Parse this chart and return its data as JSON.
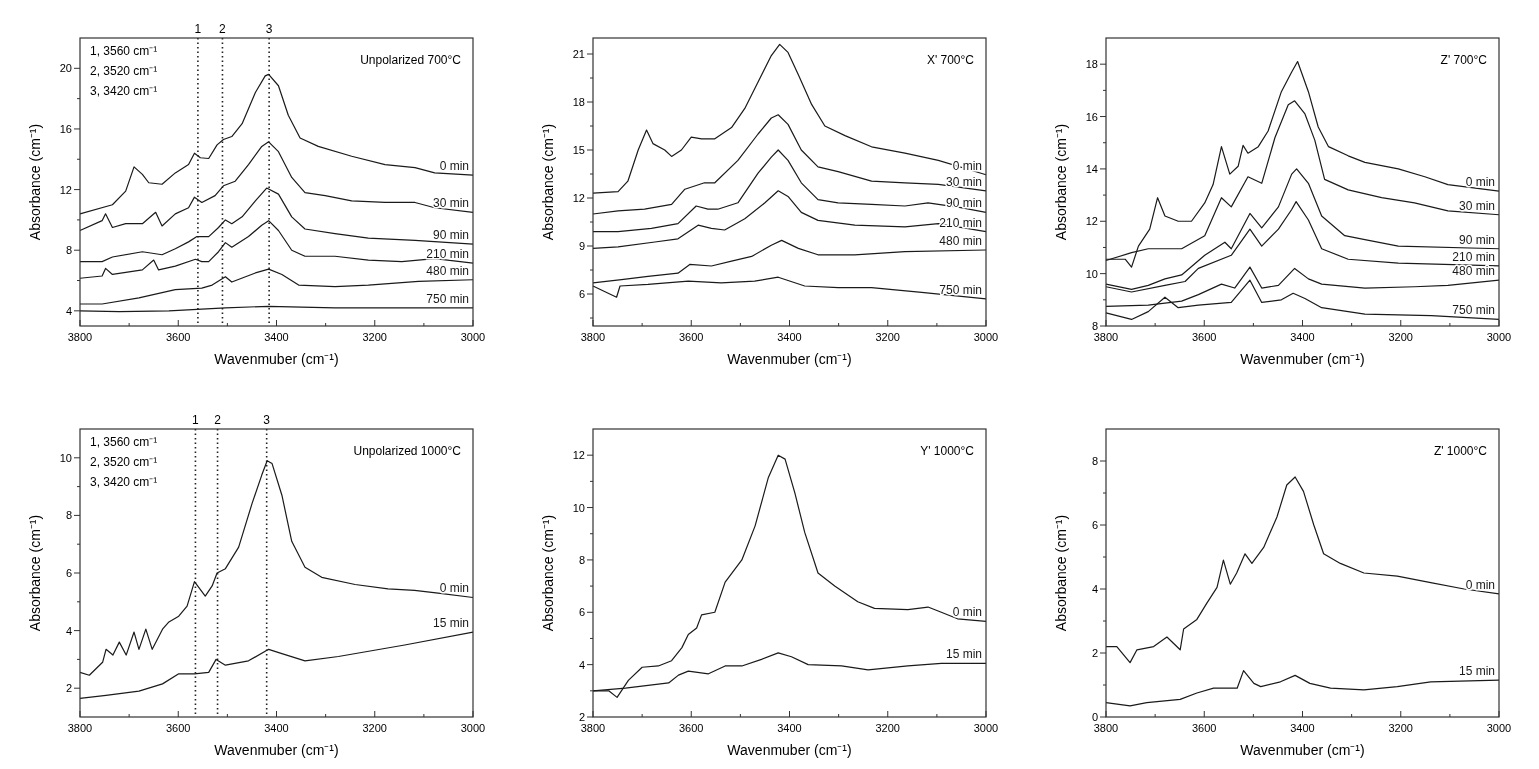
{
  "chart_data": [
    {
      "type": "line",
      "title": "Unpolarized 700°C",
      "annotations": [
        "1, 3560 cm⁻¹",
        "2, 3520 cm⁻¹",
        "3, 3420 cm⁻¹",
        "1",
        "2",
        "3"
      ],
      "xlabel": "Wavenmuber (cm⁻¹)",
      "ylabel": "Absorbance (cm⁻¹)",
      "line_style": "solid",
      "xlim": [
        3800,
        3000
      ],
      "xticks": [
        3800,
        {
          "value": 3700,
          "label": null
        },
        3600,
        {
          "value": 3500,
          "label": null
        },
        3400,
        {
          "value": 3300,
          "label": null
        },
        3200,
        {
          "value": 3100,
          "label": null
        },
        3000
      ],
      "ylim": [
        3,
        22
      ],
      "yticks": [
        4,
        {
          "value": 6,
          "label": null
        },
        8,
        {
          "value": 10,
          "label": null
        },
        12,
        {
          "value": 14,
          "label": null
        },
        16,
        {
          "value": 18,
          "label": null
        },
        20
      ],
      "ref_lines": [
        {
          "axis": "x",
          "value": 3560,
          "line_style": "dotted"
        },
        {
          "axis": "x",
          "value": 3510,
          "line_style": "dotted"
        },
        {
          "axis": "x",
          "value": 3415,
          "line_style": "dotted"
        }
      ],
      "series": [
        {
          "name": "0 min",
          "color": "#1a1a1a",
          "x": [
            3800,
            3734,
            3707,
            3690,
            3673,
            3660,
            3633,
            3606,
            3579,
            3567,
            3555,
            3538,
            3521,
            3508,
            3491,
            3470,
            3443,
            3423,
            3416,
            3396,
            3376,
            3352,
            3315,
            3247,
            3179,
            3118,
            3078,
            3000
          ],
          "values": [
            10.4,
            11.0,
            11.9,
            13.5,
            13.0,
            12.45,
            12.35,
            13.1,
            13.65,
            14.4,
            14.1,
            14.05,
            14.95,
            15.3,
            15.5,
            16.35,
            18.4,
            19.5,
            19.6,
            18.85,
            16.9,
            15.4,
            14.85,
            14.2,
            13.65,
            13.45,
            13.1,
            12.95
          ]
        },
        {
          "name": "30 min",
          "color": "#1a1a1a",
          "x": [
            3800,
            3755,
            3748,
            3734,
            3707,
            3673,
            3646,
            3633,
            3606,
            3579,
            3567,
            3552,
            3525,
            3508,
            3484,
            3457,
            3430,
            3416,
            3396,
            3369,
            3342,
            3301,
            3247,
            3179,
            3118,
            3078,
            3000
          ],
          "values": [
            9.3,
            9.95,
            10.4,
            9.5,
            9.75,
            9.75,
            10.5,
            9.6,
            10.4,
            10.8,
            11.5,
            11.15,
            11.6,
            12.25,
            12.55,
            13.65,
            14.85,
            15.15,
            14.5,
            12.8,
            11.8,
            11.6,
            11.25,
            11.15,
            11.15,
            10.8,
            10.5
          ]
        },
        {
          "name": "90 min",
          "color": "#1a1a1a",
          "x": [
            3800,
            3755,
            3734,
            3673,
            3633,
            3606,
            3579,
            3562,
            3538,
            3518,
            3504,
            3491,
            3470,
            3443,
            3420,
            3396,
            3369,
            3342,
            3281,
            3213,
            3118,
            3000
          ],
          "values": [
            7.25,
            7.25,
            7.55,
            7.9,
            7.7,
            8.1,
            8.55,
            8.9,
            8.9,
            9.5,
            10.0,
            9.75,
            10.2,
            11.25,
            12.1,
            11.7,
            10.2,
            9.4,
            9.1,
            8.8,
            8.65,
            8.4
          ]
        },
        {
          "name": "210 min",
          "color": "#1a1a1a",
          "x": [
            3800,
            3755,
            3748,
            3734,
            3673,
            3650,
            3640,
            3606,
            3565,
            3552,
            3538,
            3518,
            3504,
            3491,
            3457,
            3430,
            3416,
            3396,
            3369,
            3342,
            3281,
            3213,
            3145,
            3078,
            3000
          ],
          "values": [
            6.15,
            6.3,
            6.8,
            6.4,
            6.7,
            7.35,
            6.7,
            6.95,
            7.4,
            7.25,
            7.25,
            7.9,
            8.5,
            8.2,
            8.9,
            9.65,
            9.95,
            9.3,
            8.0,
            7.6,
            7.6,
            7.35,
            7.25,
            7.45,
            7.15
          ]
        },
        {
          "name": "480 min",
          "color": "#1a1a1a",
          "x": [
            3800,
            3755,
            3680,
            3606,
            3552,
            3531,
            3504,
            3491,
            3443,
            3416,
            3389,
            3355,
            3281,
            3213,
            3111,
            3000
          ],
          "values": [
            4.45,
            4.45,
            4.85,
            5.4,
            5.5,
            5.7,
            6.25,
            5.9,
            6.5,
            6.75,
            6.4,
            5.7,
            5.6,
            5.7,
            5.95,
            6.05
          ]
        },
        {
          "name": "750 min",
          "color": "#1a1a1a",
          "x": [
            3800,
            3720,
            3619,
            3504,
            3416,
            3281,
            3000
          ],
          "values": [
            4.0,
            3.95,
            4.0,
            4.2,
            4.3,
            4.2,
            4.2
          ]
        }
      ]
    },
    {
      "type": "line",
      "title": "X' 700°C",
      "xlabel": "Wavenmuber (cm⁻¹)",
      "ylabel": "Absorbance (cm⁻¹)",
      "line_style": "solid",
      "xlim": [
        3800,
        3000
      ],
      "xticks": [
        3800,
        {
          "value": 3700,
          "label": null
        },
        3600,
        {
          "value": 3500,
          "label": null
        },
        3400,
        {
          "value": 3300,
          "label": null
        },
        3200,
        {
          "value": 3100,
          "label": null
        },
        3000
      ],
      "ylim": [
        4,
        22
      ],
      "yticks": [
        {
          "value": 4.5,
          "label": null
        },
        6,
        {
          "value": 7.5,
          "label": null
        },
        9,
        {
          "value": 10.5,
          "label": null
        },
        12,
        {
          "value": 13.5,
          "label": null
        },
        15,
        {
          "value": 16.5,
          "label": null
        },
        18,
        {
          "value": 19.5,
          "label": null
        },
        21
      ],
      "series": [
        {
          "name": "0 min",
          "color": "#1a1a1a",
          "x": [
            3800,
            3749,
            3729,
            3708,
            3691,
            3678,
            3654,
            3640,
            3620,
            3600,
            3579,
            3552,
            3518,
            3491,
            3464,
            3437,
            3420,
            3403,
            3382,
            3355,
            3328,
            3287,
            3233,
            3165,
            3097,
            3000
          ],
          "values": [
            12.3,
            12.4,
            13.05,
            15.0,
            16.25,
            15.4,
            15.0,
            14.6,
            15.0,
            15.8,
            15.7,
            15.7,
            16.4,
            17.6,
            19.25,
            20.9,
            21.6,
            21.1,
            19.7,
            17.85,
            16.5,
            15.9,
            15.2,
            14.8,
            14.35,
            13.45
          ]
        },
        {
          "name": "30 min",
          "color": "#1a1a1a",
          "x": [
            3800,
            3749,
            3695,
            3640,
            3613,
            3573,
            3552,
            3505,
            3464,
            3437,
            3423,
            3403,
            3376,
            3342,
            3301,
            3233,
            3165,
            3097,
            3000
          ],
          "values": [
            11.0,
            11.2,
            11.3,
            11.6,
            12.55,
            12.95,
            12.95,
            14.35,
            16.0,
            17.0,
            17.2,
            16.6,
            15.0,
            13.95,
            13.65,
            13.05,
            12.95,
            12.85,
            12.45
          ]
        },
        {
          "name": "90 min",
          "color": "#1a1a1a",
          "x": [
            3800,
            3749,
            3681,
            3627,
            3590,
            3566,
            3546,
            3505,
            3464,
            3437,
            3423,
            3403,
            3376,
            3342,
            3301,
            3233,
            3165,
            3118,
            3051,
            3000
          ],
          "values": [
            9.9,
            9.9,
            10.1,
            10.4,
            11.5,
            11.3,
            11.3,
            11.7,
            13.55,
            14.55,
            15.0,
            14.35,
            12.95,
            11.9,
            11.7,
            11.6,
            11.5,
            11.7,
            11.4,
            11.1
          ]
        },
        {
          "name": "210 min",
          "color": "#1a1a1a",
          "x": [
            3800,
            3749,
            3674,
            3627,
            3586,
            3559,
            3532,
            3491,
            3450,
            3423,
            3403,
            3376,
            3342,
            3267,
            3165,
            3097,
            3000
          ],
          "values": [
            8.85,
            8.95,
            9.25,
            9.45,
            10.3,
            10.1,
            10.0,
            10.7,
            11.7,
            12.45,
            12.1,
            11.1,
            10.6,
            10.3,
            10.2,
            10.4,
            9.9
          ]
        },
        {
          "name": "480 min",
          "color": "#1a1a1a",
          "x": [
            3800,
            3742,
            3688,
            3627,
            3603,
            3559,
            3518,
            3477,
            3437,
            3416,
            3382,
            3342,
            3267,
            3165,
            3000
          ],
          "values": [
            6.7,
            6.9,
            7.1,
            7.3,
            7.85,
            7.75,
            8.05,
            8.35,
            9.05,
            9.35,
            8.85,
            8.45,
            8.45,
            8.65,
            8.75
          ]
        },
        {
          "name": "750 min",
          "color": "#1a1a1a",
          "x": [
            3800,
            3752,
            3745,
            3688,
            3606,
            3539,
            3471,
            3423,
            3369,
            3301,
            3233,
            3131,
            3000
          ],
          "values": [
            6.5,
            5.8,
            6.5,
            6.6,
            6.8,
            6.7,
            6.8,
            7.05,
            6.5,
            6.4,
            6.4,
            6.1,
            5.7
          ]
        }
      ]
    },
    {
      "type": "line",
      "title": "Z' 700°C",
      "xlabel": "Wavenmuber (cm⁻¹)",
      "ylabel": "Absorbance (cm⁻¹)",
      "line_style": "solid",
      "xlim": [
        3800,
        3000
      ],
      "xticks": [
        3800,
        {
          "value": 3700,
          "label": null
        },
        3600,
        {
          "value": 3500,
          "label": null
        },
        3400,
        {
          "value": 3300,
          "label": null
        },
        3200,
        {
          "value": 3100,
          "label": null
        },
        3000
      ],
      "ylim": [
        8,
        19
      ],
      "yticks": [
        8,
        {
          "value": 9,
          "label": null
        },
        10,
        {
          "value": 11,
          "label": null
        },
        12,
        {
          "value": 13,
          "label": null
        },
        14,
        {
          "value": 15,
          "label": null
        },
        16,
        {
          "value": 17,
          "label": null
        },
        18
      ],
      "series": [
        {
          "name": "0 min",
          "color": "#1a1a1a",
          "x": [
            3800,
            3761,
            3748,
            3734,
            3711,
            3695,
            3680,
            3653,
            3626,
            3599,
            3582,
            3565,
            3548,
            3531,
            3521,
            3511,
            3490,
            3470,
            3443,
            3422,
            3410,
            3388,
            3368,
            3347,
            3307,
            3273,
            3205,
            3151,
            3104,
            3000
          ],
          "values": [
            10.55,
            10.55,
            10.25,
            11.05,
            11.7,
            12.9,
            12.2,
            12.0,
            12.0,
            12.7,
            13.4,
            14.85,
            13.8,
            14.1,
            14.9,
            14.6,
            14.85,
            15.45,
            16.95,
            17.7,
            18.1,
            16.95,
            15.6,
            14.85,
            14.5,
            14.25,
            14.0,
            13.7,
            13.4,
            13.15
          ]
        },
        {
          "name": "30 min",
          "color": "#1a1a1a",
          "x": [
            3800,
            3748,
            3714,
            3646,
            3599,
            3565,
            3545,
            3511,
            3483,
            3456,
            3429,
            3416,
            3395,
            3375,
            3355,
            3307,
            3239,
            3172,
            3104,
            3000
          ],
          "values": [
            10.5,
            10.8,
            10.95,
            10.95,
            11.45,
            12.9,
            12.55,
            13.7,
            13.45,
            15.2,
            16.45,
            16.6,
            16.1,
            15.1,
            13.6,
            13.2,
            12.9,
            12.7,
            12.4,
            12.25
          ]
        },
        {
          "name": "90 min",
          "color": "#1a1a1a",
          "x": [
            3800,
            3748,
            3714,
            3680,
            3646,
            3599,
            3558,
            3545,
            3507,
            3483,
            3449,
            3422,
            3412,
            3388,
            3361,
            3314,
            3273,
            3205,
            3000
          ],
          "values": [
            9.6,
            9.4,
            9.55,
            9.8,
            9.95,
            10.7,
            11.2,
            10.95,
            12.3,
            11.75,
            12.55,
            13.8,
            14.0,
            13.45,
            12.2,
            11.45,
            11.3,
            11.05,
            10.95
          ]
        },
        {
          "name": "210 min",
          "color": "#1a1a1a",
          "x": [
            3800,
            3748,
            3680,
            3639,
            3612,
            3545,
            3507,
            3483,
            3449,
            3422,
            3413,
            3388,
            3361,
            3307,
            3205,
            3000
          ],
          "values": [
            9.5,
            9.3,
            9.55,
            9.7,
            10.2,
            10.7,
            11.7,
            11.05,
            11.7,
            12.45,
            12.75,
            12.05,
            10.95,
            10.55,
            10.4,
            10.3
          ]
        },
        {
          "name": "480 min",
          "color": "#1a1a1a",
          "x": [
            3800,
            3714,
            3646,
            3612,
            3565,
            3538,
            3507,
            3483,
            3449,
            3416,
            3388,
            3361,
            3273,
            3172,
            3104,
            3000
          ],
          "values": [
            8.75,
            8.8,
            8.95,
            9.2,
            9.6,
            9.45,
            10.25,
            9.45,
            9.55,
            10.2,
            9.8,
            9.6,
            9.45,
            9.5,
            9.55,
            9.75
          ]
        },
        {
          "name": "750 min",
          "color": "#1a1a1a",
          "x": [
            3800,
            3748,
            3714,
            3680,
            3653,
            3612,
            3545,
            3507,
            3483,
            3443,
            3419,
            3395,
            3361,
            3273,
            3138,
            3000
          ],
          "values": [
            8.5,
            8.25,
            8.55,
            9.1,
            8.7,
            8.8,
            8.9,
            9.75,
            8.9,
            9.0,
            9.25,
            9.05,
            8.7,
            8.45,
            8.4,
            8.25
          ]
        }
      ]
    },
    {
      "type": "line",
      "title": "Unpolarized 1000°C",
      "annotations": [
        "1, 3560 cm⁻¹",
        "2, 3520 cm⁻¹",
        "3, 3420 cm⁻¹",
        "1",
        "2",
        "3"
      ],
      "xlabel": "Wavenmuber (cm⁻¹)",
      "ylabel": "Absorbance (cm⁻¹)",
      "line_style": "solid",
      "xlim": [
        3800,
        3000
      ],
      "xticks": [
        3800,
        {
          "value": 3700,
          "label": null
        },
        3600,
        {
          "value": 3500,
          "label": null
        },
        3400,
        {
          "value": 3300,
          "label": null
        },
        3200,
        {
          "value": 3100,
          "label": null
        },
        3000
      ],
      "ylim": [
        1,
        11
      ],
      "yticks": [
        2,
        {
          "value": 3,
          "label": null
        },
        4,
        {
          "value": 5,
          "label": null
        },
        6,
        {
          "value": 7,
          "label": null
        },
        8,
        {
          "value": 9,
          "label": null
        },
        10
      ],
      "ref_lines": [
        {
          "axis": "x",
          "value": 3565,
          "line_style": "dotted"
        },
        {
          "axis": "x",
          "value": 3520,
          "line_style": "dotted"
        },
        {
          "axis": "x",
          "value": 3420,
          "line_style": "dotted"
        }
      ],
      "series": [
        {
          "name": "0 min",
          "color": "#1a1a1a",
          "x": [
            3800,
            3781,
            3754,
            3747,
            3733,
            3720,
            3706,
            3690,
            3680,
            3666,
            3653,
            3632,
            3619,
            3599,
            3582,
            3567,
            3545,
            3531,
            3521,
            3504,
            3477,
            3450,
            3430,
            3419,
            3409,
            3389,
            3369,
            3342,
            3308,
            3240,
            3173,
            3119,
            3071,
            3000
          ],
          "values": [
            2.55,
            2.45,
            2.9,
            3.35,
            3.15,
            3.6,
            3.15,
            3.95,
            3.35,
            4.05,
            3.35,
            4.05,
            4.3,
            4.5,
            4.85,
            5.7,
            5.2,
            5.55,
            6.0,
            6.15,
            6.9,
            8.4,
            9.4,
            9.9,
            9.8,
            8.7,
            7.1,
            6.2,
            5.85,
            5.6,
            5.45,
            5.4,
            5.3,
            5.15
          ]
        },
        {
          "name": "15 min",
          "color": "#1a1a1a",
          "x": [
            3800,
            3747,
            3680,
            3632,
            3599,
            3567,
            3538,
            3523,
            3504,
            3457,
            3416,
            3389,
            3342,
            3274,
            3139,
            3000
          ],
          "values": [
            1.65,
            1.75,
            1.9,
            2.15,
            2.5,
            2.5,
            2.55,
            3.0,
            2.8,
            2.95,
            3.35,
            3.2,
            2.95,
            3.1,
            3.5,
            3.95
          ]
        }
      ]
    },
    {
      "type": "line",
      "title": "Y' 1000°C",
      "xlabel": "Wavenmuber (cm⁻¹)",
      "ylabel": "Absorbance (cm⁻¹)",
      "line_style": "solid",
      "xlim": [
        3800,
        3000
      ],
      "xticks": [
        3800,
        {
          "value": 3700,
          "label": null
        },
        3600,
        {
          "value": 3500,
          "label": null
        },
        3400,
        {
          "value": 3300,
          "label": null
        },
        3200,
        {
          "value": 3100,
          "label": null
        },
        3000
      ],
      "ylim": [
        2,
        13
      ],
      "yticks": [
        2,
        {
          "value": 3,
          "label": null
        },
        4,
        {
          "value": 5,
          "label": null
        },
        6,
        {
          "value": 7,
          "label": null
        },
        8,
        {
          "value": 9,
          "label": null
        },
        10,
        {
          "value": 11,
          "label": null
        },
        12
      ],
      "series": [
        {
          "name": "0 min",
          "color": "#1a1a1a",
          "x": [
            3800,
            3768,
            3751,
            3728,
            3700,
            3667,
            3640,
            3619,
            3606,
            3589,
            3579,
            3552,
            3531,
            3497,
            3470,
            3443,
            3423,
            3409,
            3389,
            3369,
            3342,
            3308,
            3261,
            3227,
            3159,
            3118,
            3091,
            3058,
            3000
          ],
          "values": [
            3.0,
            3.0,
            2.75,
            3.4,
            3.9,
            3.95,
            4.15,
            4.65,
            5.15,
            5.4,
            5.9,
            6.0,
            7.15,
            8.0,
            9.3,
            11.15,
            12.0,
            11.85,
            10.55,
            9.05,
            7.5,
            7.0,
            6.4,
            6.15,
            6.1,
            6.2,
            6.0,
            5.75,
            5.65
          ]
        },
        {
          "name": "15 min",
          "color": "#1a1a1a",
          "x": [
            3800,
            3734,
            3646,
            3626,
            3606,
            3565,
            3531,
            3497,
            3457,
            3423,
            3396,
            3362,
            3294,
            3240,
            3159,
            3091,
            3000
          ],
          "values": [
            3.0,
            3.1,
            3.3,
            3.6,
            3.75,
            3.65,
            3.95,
            3.95,
            4.2,
            4.45,
            4.3,
            4.0,
            3.95,
            3.8,
            3.95,
            4.05,
            4.05
          ]
        }
      ]
    },
    {
      "type": "line",
      "title": "Z' 1000°C",
      "xlabel": "Wavenmuber (cm⁻¹)",
      "ylabel": "Absorbance (cm⁻¹)",
      "line_style": "solid",
      "xlim": [
        3800,
        3000
      ],
      "xticks": [
        3800,
        {
          "value": 3700,
          "label": null
        },
        3600,
        {
          "value": 3500,
          "label": null
        },
        3400,
        {
          "value": 3300,
          "label": null
        },
        3200,
        {
          "value": 3100,
          "label": null
        },
        3000
      ],
      "ylim": [
        0,
        9
      ],
      "yticks": [
        0,
        {
          "value": 1,
          "label": null
        },
        2,
        {
          "value": 3,
          "label": null
        },
        4,
        {
          "value": 5,
          "label": null
        },
        6,
        {
          "value": 7,
          "label": null
        },
        8
      ],
      "series": [
        {
          "name": "0 min",
          "color": "#1a1a1a",
          "x": [
            3800,
            3778,
            3751,
            3737,
            3703,
            3676,
            3649,
            3642,
            3615,
            3595,
            3574,
            3561,
            3547,
            3534,
            3517,
            3503,
            3479,
            3452,
            3432,
            3415,
            3398,
            3377,
            3357,
            3323,
            3275,
            3207,
            3139,
            3071,
            3000
          ],
          "values": [
            2.2,
            2.2,
            1.7,
            2.1,
            2.2,
            2.5,
            2.1,
            2.75,
            3.05,
            3.55,
            4.05,
            4.9,
            4.15,
            4.5,
            5.1,
            4.8,
            5.3,
            6.25,
            7.25,
            7.5,
            7.05,
            6.0,
            5.1,
            4.8,
            4.5,
            4.4,
            4.2,
            4.0,
            3.85
          ]
        },
        {
          "name": "15 min",
          "color": "#1a1a1a",
          "x": [
            3800,
            3751,
            3717,
            3649,
            3615,
            3581,
            3533,
            3520,
            3499,
            3485,
            3445,
            3415,
            3385,
            3343,
            3275,
            3207,
            3139,
            3000
          ],
          "values": [
            0.45,
            0.35,
            0.45,
            0.55,
            0.75,
            0.9,
            0.9,
            1.45,
            1.05,
            0.95,
            1.1,
            1.3,
            1.05,
            0.9,
            0.85,
            0.95,
            1.1,
            1.15
          ]
        }
      ]
    }
  ]
}
